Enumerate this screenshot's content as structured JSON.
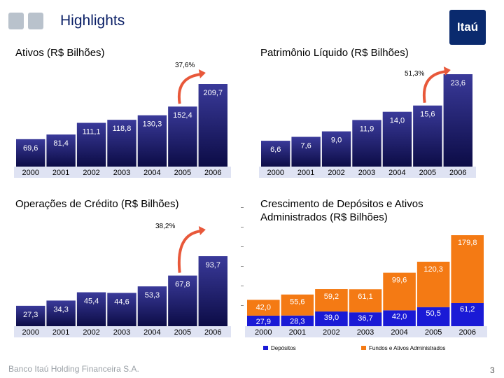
{
  "header": {
    "title": "Highlights",
    "logo_text": "Itaú"
  },
  "footer": {
    "company": "Banco Itaú Holding Financeira S.A.",
    "page_number": "3"
  },
  "colors": {
    "bar_dark": "#0c0c46",
    "bar_light": "#3a3a9a",
    "blue_series": "#1a1ad6",
    "orange_series": "#f47a14",
    "value_text": "#ffffff",
    "axis_band": "#dfe3f3",
    "arrow": "#e8583a"
  },
  "chart_data": [
    {
      "type": "bar",
      "title": "Ativos (R$ Bilhões)",
      "growth_label": "37,6%",
      "categories": [
        "2000",
        "2001",
        "2002",
        "2003",
        "2004",
        "2005",
        "2006"
      ],
      "values": [
        69.6,
        81.4,
        111.1,
        118.8,
        130.3,
        152.4,
        209.7
      ],
      "value_labels": [
        "69,6",
        "81,4",
        "111,1",
        "118,8",
        "130,3",
        "152,4",
        "209,7"
      ]
    },
    {
      "type": "bar",
      "title": "Patrimônio Líquido (R$ Bilhões)",
      "growth_label": "51,3%",
      "categories": [
        "2000",
        "2001",
        "2002",
        "2003",
        "2004",
        "2005",
        "2006"
      ],
      "values": [
        6.6,
        7.6,
        9.0,
        11.9,
        14.0,
        15.6,
        23.6
      ],
      "value_labels": [
        "6,6",
        "7,6",
        "9,0",
        "11,9",
        "14,0",
        "15,6",
        "23,6"
      ]
    },
    {
      "type": "bar",
      "title": "Operações de Crédito (R$ Bilhões)",
      "growth_label": "38,2%",
      "categories": [
        "2000",
        "2001",
        "2002",
        "2003",
        "2004",
        "2005",
        "2006"
      ],
      "values": [
        27.3,
        34.3,
        45.4,
        44.6,
        53.3,
        67.8,
        93.7
      ],
      "value_labels": [
        "27,3",
        "34,3",
        "45,4",
        "44,6",
        "53,3",
        "67,8",
        "93,7"
      ]
    },
    {
      "type": "bar",
      "stacked": true,
      "title": "Crescimento de Depósitos e Ativos Administrados (R$ Bilhões)",
      "categories": [
        "2000",
        "2001",
        "2002",
        "2003",
        "2004",
        "2005",
        "2006"
      ],
      "legend_position": "bottom",
      "series": [
        {
          "name": "Depósitos",
          "values": [
            27.9,
            28.3,
            39.0,
            36.7,
            42.0,
            50.5,
            61.2
          ],
          "value_labels": [
            "27,9",
            "28,3",
            "39,0",
            "36,7",
            "42,0",
            "50,5",
            "61,2"
          ]
        },
        {
          "name": "Fundos e Ativos Administrados",
          "values": [
            42.0,
            55.6,
            59.2,
            61.1,
            99.6,
            120.3,
            179.8
          ],
          "value_labels": [
            "42,0",
            "55,6",
            "59,2",
            "61,1",
            "99,6",
            "120,3",
            "179,8"
          ]
        }
      ]
    }
  ]
}
